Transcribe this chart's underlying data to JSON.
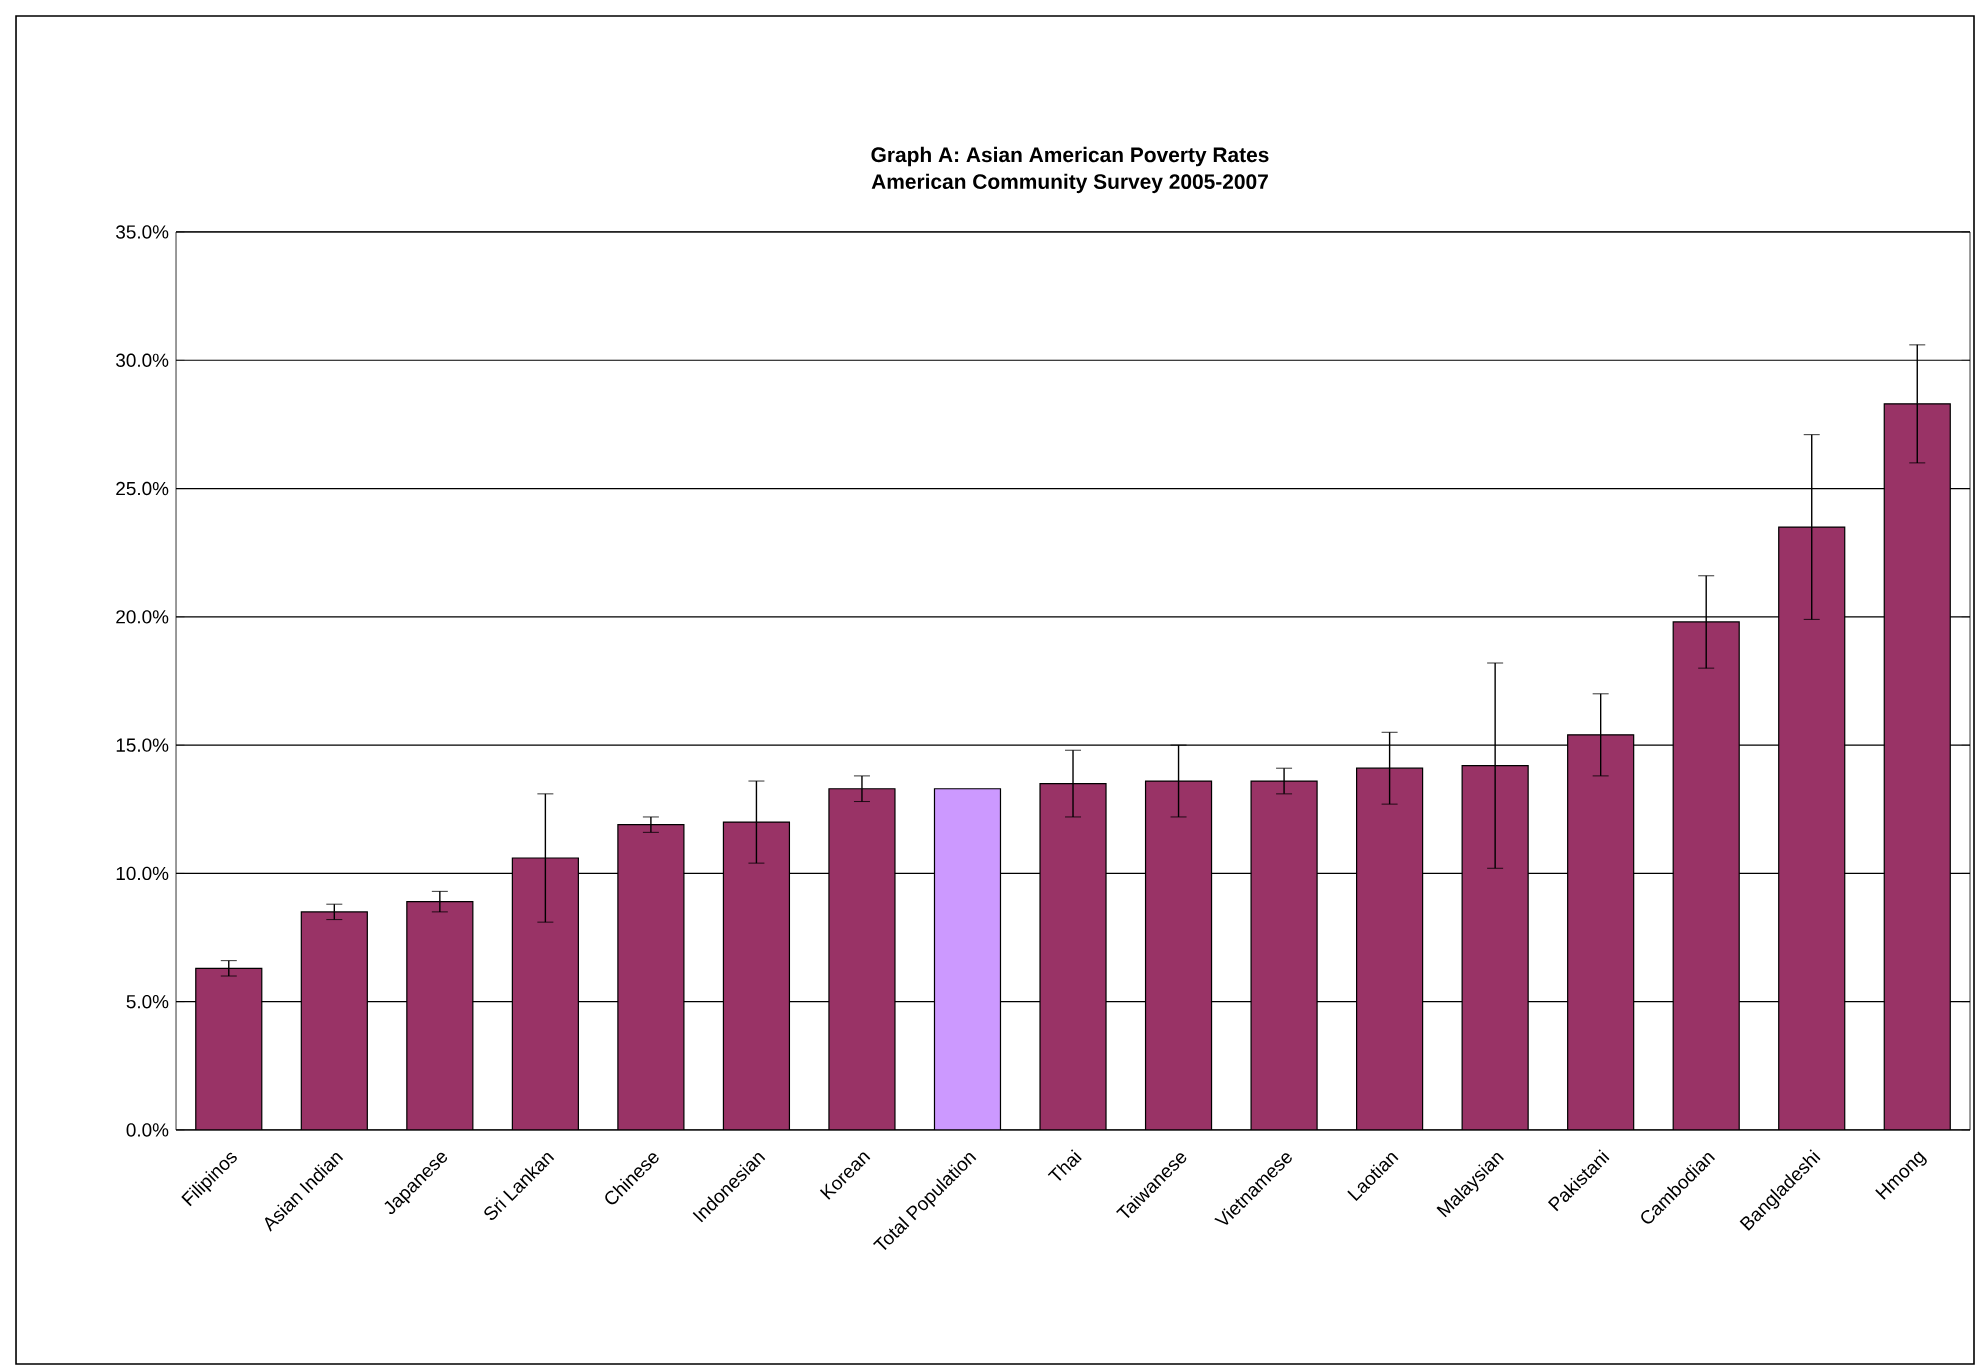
{
  "chart_data": {
    "type": "bar",
    "title": "Graph A: Asian American Poverty Rates",
    "subtitle": "American Community Survey 2005-2007",
    "categories": [
      "Filipinos",
      "Asian Indian",
      "Japanese",
      "Sri Lankan",
      "Chinese",
      "Indonesian",
      "Korean",
      "Total Population",
      "Thai",
      "Taiwanese",
      "Vietnamese",
      "Laotian",
      "Malaysian",
      "Pakistani",
      "Cambodian",
      "Bangladeshi",
      "Hmong"
    ],
    "values": [
      6.3,
      8.5,
      8.9,
      10.6,
      11.9,
      12.0,
      13.3,
      13.3,
      13.5,
      13.6,
      13.6,
      14.1,
      14.2,
      15.4,
      19.8,
      23.5,
      28.3
    ],
    "errors": [
      [
        6.0,
        6.6
      ],
      [
        8.2,
        8.8
      ],
      [
        8.5,
        9.3
      ],
      [
        8.1,
        13.1
      ],
      [
        11.6,
        12.2
      ],
      [
        10.4,
        13.6
      ],
      [
        12.8,
        13.8
      ],
      null,
      [
        12.2,
        14.8
      ],
      [
        12.2,
        15.0
      ],
      [
        13.1,
        14.1
      ],
      [
        12.7,
        15.5
      ],
      [
        10.2,
        18.2
      ],
      [
        13.8,
        17.0
      ],
      [
        18.0,
        21.6
      ],
      [
        19.9,
        27.1
      ],
      [
        26.0,
        30.6
      ]
    ],
    "colors": [
      "#993366",
      "#993366",
      "#993366",
      "#993366",
      "#993366",
      "#993366",
      "#993366",
      "#cc99ff",
      "#993366",
      "#993366",
      "#993366",
      "#993366",
      "#993366",
      "#993366",
      "#993366",
      "#993366",
      "#993366"
    ],
    "ylim": [
      0,
      35
    ],
    "yticks": [
      {
        "value": 0,
        "label": "0.0%"
      },
      {
        "value": 5,
        "label": "5.0%"
      },
      {
        "value": 10,
        "label": "10.0%"
      },
      {
        "value": 15,
        "label": "15.0%"
      },
      {
        "value": 20,
        "label": "20.0%"
      },
      {
        "value": 25,
        "label": "25.0%"
      },
      {
        "value": 30,
        "label": "30.0%"
      },
      {
        "value": 35,
        "label": "35.0%"
      }
    ],
    "grid": "y"
  }
}
